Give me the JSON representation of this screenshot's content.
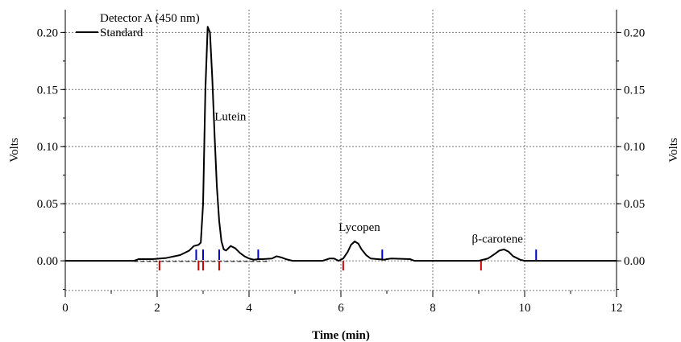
{
  "chart_data": {
    "type": "line",
    "title": "",
    "xlabel": "Time (min)",
    "ylabel": "Volts",
    "ylabel_right": "Volts",
    "xlim": [
      0,
      12
    ],
    "ylim": [
      -0.026,
      0.22
    ],
    "x_ticks": [
      0,
      2,
      4,
      6,
      8,
      10,
      12
    ],
    "x_tick_labels": [
      "0",
      "2",
      "4",
      "6",
      "8",
      "10",
      "12"
    ],
    "y_ticks": [
      0.0,
      0.05,
      0.1,
      0.15,
      0.2
    ],
    "y_tick_labels": [
      "0.00",
      "0.05",
      "0.10",
      "0.15",
      "0.20"
    ],
    "grid": true,
    "legend": {
      "placement": "top-left",
      "detector": "Detector A (450 nm)",
      "entries": [
        "Standard"
      ]
    },
    "series": [
      {
        "name": "Standard",
        "color": "#000000",
        "x": [
          0.0,
          1.5,
          1.6,
          1.9,
          2.2,
          2.5,
          2.7,
          2.8,
          2.9,
          2.95,
          3.0,
          3.05,
          3.1,
          3.15,
          3.2,
          3.25,
          3.3,
          3.35,
          3.4,
          3.45,
          3.5,
          3.55,
          3.6,
          3.7,
          3.8,
          3.9,
          4.0,
          4.1,
          4.2,
          4.3,
          4.5,
          4.6,
          4.7,
          4.8,
          4.95,
          5.2,
          5.6,
          5.75,
          5.85,
          5.95,
          6.05,
          6.15,
          6.22,
          6.3,
          6.38,
          6.45,
          6.55,
          6.65,
          6.8,
          6.95,
          7.0,
          7.1,
          7.5,
          7.6,
          8.6,
          9.0,
          9.2,
          9.35,
          9.45,
          9.55,
          9.65,
          9.75,
          9.9,
          10.0,
          10.3,
          12.0
        ],
        "y": [
          0.0,
          0.0,
          0.0015,
          0.0015,
          0.0025,
          0.005,
          0.009,
          0.013,
          0.014,
          0.016,
          0.05,
          0.15,
          0.205,
          0.2,
          0.16,
          0.11,
          0.065,
          0.035,
          0.017,
          0.01,
          0.009,
          0.011,
          0.013,
          0.011,
          0.007,
          0.004,
          0.002,
          0.001,
          0.0015,
          0.0015,
          0.002,
          0.004,
          0.003,
          0.0015,
          0.0,
          0.0,
          0.0,
          0.002,
          0.002,
          0.0,
          0.002,
          0.008,
          0.014,
          0.017,
          0.015,
          0.01,
          0.005,
          0.002,
          0.0015,
          0.001,
          0.0015,
          0.002,
          0.0015,
          0.0,
          0.0,
          0.0,
          0.002,
          0.006,
          0.009,
          0.01,
          0.008,
          0.004,
          0.001,
          0.0,
          0.0,
          0.0
        ]
      }
    ],
    "annotations": [
      {
        "text": "Lutein",
        "x": 3.25,
        "y": 0.123
      },
      {
        "text": "Lycopen",
        "x": 5.95,
        "y": 0.026
      },
      {
        "text": "β-carotene",
        "x": 8.85,
        "y": 0.016
      }
    ],
    "markers": {
      "red": {
        "color": "#cc0000",
        "x": [
          2.05,
          2.9,
          3.0,
          3.35,
          6.05,
          9.05
        ]
      },
      "blue": {
        "color": "#0000cc",
        "x": [
          2.85,
          3.0,
          3.35,
          4.2,
          6.9,
          10.25
        ]
      }
    }
  }
}
